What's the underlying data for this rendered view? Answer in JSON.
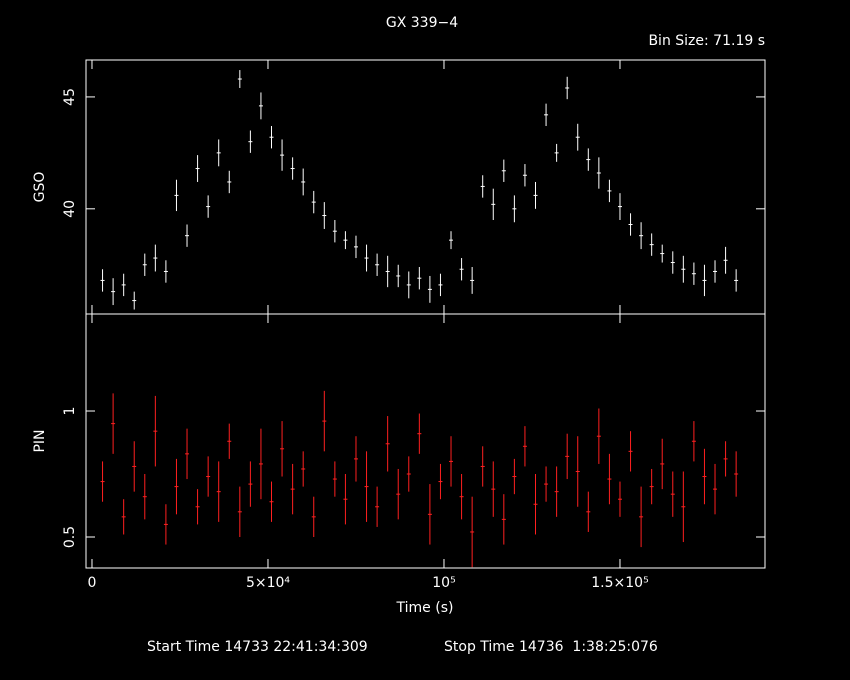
{
  "chart_data": [
    {
      "type": "errorbar",
      "title": "GX 339−4",
      "subtitle": "Bin Size: 71.19 s",
      "y_label": "GSO",
      "color": "#ffffff",
      "x": [
        3000,
        6000,
        9000,
        12000,
        15000,
        18000,
        21000,
        24000,
        27000,
        30000,
        33000,
        36000,
        39000,
        42000,
        45000,
        48000,
        51000,
        54000,
        57000,
        60000,
        63000,
        66000,
        69000,
        72000,
        75000,
        78000,
        81000,
        84000,
        87000,
        90000,
        93000,
        96000,
        99000,
        102000,
        105000,
        108000,
        111000,
        114000,
        117000,
        120000,
        123000,
        126000,
        129000,
        132000,
        135000,
        138000,
        141000,
        144000,
        147000,
        150000,
        153000,
        156000,
        159000,
        162000,
        165000,
        168000,
        171000,
        174000,
        177000,
        180000,
        183000
      ],
      "values": [
        36.8,
        36.3,
        36.6,
        35.9,
        37.5,
        37.8,
        37.2,
        40.6,
        38.8,
        41.8,
        40.1,
        42.5,
        41.2,
        45.8,
        43.0,
        44.6,
        43.2,
        42.4,
        41.8,
        41.2,
        40.3,
        39.7,
        39.0,
        38.6,
        38.3,
        37.8,
        37.5,
        37.2,
        37.0,
        36.6,
        36.9,
        36.4,
        36.6,
        38.6,
        37.3,
        36.8,
        41.0,
        40.2,
        41.7,
        40.0,
        41.5,
        40.6,
        44.2,
        42.5,
        45.4,
        43.2,
        42.2,
        41.6,
        40.8,
        40.1,
        39.3,
        38.8,
        38.4,
        38.0,
        37.6,
        37.3,
        37.1,
        36.8,
        37.2,
        37.7,
        36.8
      ],
      "errors": [
        0.5,
        0.6,
        0.5,
        0.4,
        0.5,
        0.6,
        0.5,
        0.7,
        0.5,
        0.6,
        0.5,
        0.6,
        0.5,
        0.4,
        0.5,
        0.6,
        0.5,
        0.7,
        0.5,
        0.6,
        0.5,
        0.6,
        0.5,
        0.4,
        0.5,
        0.6,
        0.5,
        0.7,
        0.5,
        0.6,
        0.5,
        0.6,
        0.5,
        0.4,
        0.5,
        0.6,
        0.5,
        0.7,
        0.5,
        0.6,
        0.5,
        0.6,
        0.5,
        0.4,
        0.5,
        0.6,
        0.5,
        0.7,
        0.5,
        0.6,
        0.5,
        0.6,
        0.5,
        0.4,
        0.5,
        0.6,
        0.5,
        0.7,
        0.5,
        0.6,
        0.5
      ],
      "xlim": [
        -1700,
        191200
      ],
      "ylim": [
        35.3,
        46.65
      ],
      "yticks": [
        40,
        45
      ]
    },
    {
      "type": "errorbar",
      "y_label": "PIN",
      "x_label": "Time (s)",
      "color": "#ff2020",
      "x": [
        3000,
        6000,
        9000,
        12000,
        15000,
        18000,
        21000,
        24000,
        27000,
        30000,
        33000,
        36000,
        39000,
        42000,
        45000,
        48000,
        51000,
        54000,
        57000,
        60000,
        63000,
        66000,
        69000,
        72000,
        75000,
        78000,
        81000,
        84000,
        87000,
        90000,
        93000,
        96000,
        99000,
        102000,
        105000,
        108000,
        111000,
        114000,
        117000,
        120000,
        123000,
        126000,
        129000,
        132000,
        135000,
        138000,
        141000,
        144000,
        147000,
        150000,
        153000,
        156000,
        159000,
        162000,
        165000,
        168000,
        171000,
        174000,
        177000,
        180000,
        183000
      ],
      "values": [
        0.72,
        0.95,
        0.58,
        0.78,
        0.66,
        0.92,
        0.55,
        0.7,
        0.83,
        0.62,
        0.74,
        0.68,
        0.88,
        0.6,
        0.71,
        0.79,
        0.64,
        0.85,
        0.69,
        0.77,
        0.58,
        0.96,
        0.73,
        0.65,
        0.81,
        0.7,
        0.62,
        0.87,
        0.67,
        0.75,
        0.91,
        0.59,
        0.72,
        0.8,
        0.66,
        0.52,
        0.78,
        0.69,
        0.57,
        0.74,
        0.86,
        0.63,
        0.71,
        0.68,
        0.82,
        0.76,
        0.6,
        0.9,
        0.73,
        0.65,
        0.84,
        0.58,
        0.7,
        0.79,
        0.67,
        0.62,
        0.88,
        0.74,
        0.69,
        0.81,
        0.75
      ],
      "errors": [
        0.08,
        0.12,
        0.07,
        0.1,
        0.09,
        0.14,
        0.08,
        0.11,
        0.1,
        0.07,
        0.08,
        0.12,
        0.07,
        0.1,
        0.09,
        0.14,
        0.08,
        0.11,
        0.1,
        0.07,
        0.08,
        0.12,
        0.07,
        0.1,
        0.09,
        0.14,
        0.08,
        0.11,
        0.1,
        0.07,
        0.08,
        0.12,
        0.07,
        0.1,
        0.09,
        0.14,
        0.08,
        0.11,
        0.1,
        0.07,
        0.08,
        0.12,
        0.07,
        0.1,
        0.09,
        0.14,
        0.08,
        0.11,
        0.1,
        0.07,
        0.08,
        0.12,
        0.07,
        0.1,
        0.09,
        0.14,
        0.08,
        0.11,
        0.1,
        0.07,
        0.09
      ],
      "xlim": [
        -1700,
        191200
      ],
      "ylim": [
        0.377,
        1.385
      ],
      "yticks": [
        0.5,
        1
      ],
      "xticks": [
        0,
        {
          "value": 50000,
          "label": "5×10⁴"
        },
        {
          "value": 100000,
          "label": "10⁵"
        },
        {
          "value": 150000,
          "label": "1.5×10⁵"
        }
      ]
    }
  ],
  "footer": {
    "start": "Start Time 14733 22:41:34:309",
    "stop": "Stop Time 14736  1:38:25:076"
  }
}
